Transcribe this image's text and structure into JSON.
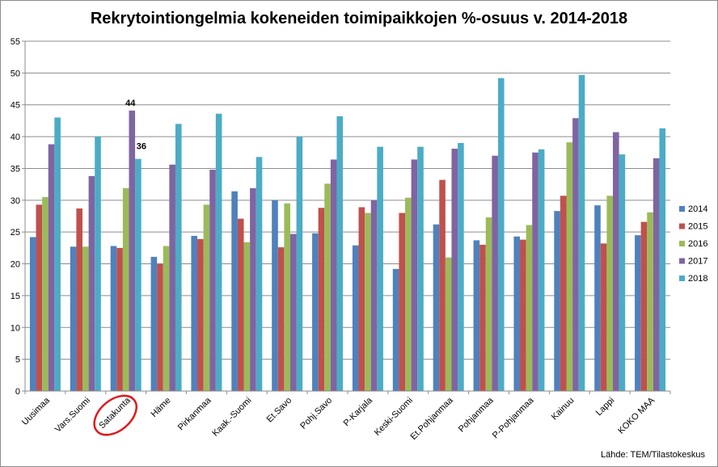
{
  "chart_data": {
    "type": "bar",
    "title": "Rekrytointiongelmia kokeneiden toimipaikkojen %-osuus v. 2014-2018",
    "xlabel": "",
    "ylabel": "",
    "ylim": [
      0,
      55
    ],
    "yticks": [
      0,
      5,
      10,
      15,
      20,
      25,
      30,
      35,
      40,
      45,
      50,
      55
    ],
    "grid": true,
    "legend_position": "right",
    "categories": [
      "Uusimaa",
      "Vars.Suomi",
      "Satakunta",
      "Häme",
      "Pirkanmaa",
      "Kaak.-Suomi",
      "Et.Savo",
      "Pohj.Savo",
      "P-Karjala",
      "Keski-Suomi",
      "Et.Pohjanmaa",
      "Pohjanmaa",
      "P-Pohjanmaa",
      "Kainuu",
      "Lappi",
      "KOKO MAA"
    ],
    "series": [
      {
        "name": "2014",
        "color": "#4f81bd",
        "values": [
          24.2,
          22.7,
          22.8,
          21.1,
          24.4,
          31.4,
          30.0,
          24.8,
          22.9,
          19.2,
          26.2,
          23.7,
          24.3,
          28.3,
          29.2,
          24.5
        ]
      },
      {
        "name": "2015",
        "color": "#c0504d",
        "values": [
          29.3,
          28.7,
          22.5,
          20.0,
          23.9,
          27.1,
          22.6,
          28.8,
          28.9,
          28.0,
          33.2,
          23.0,
          23.8,
          30.7,
          23.2,
          26.6
        ]
      },
      {
        "name": "2016",
        "color": "#9bbb59",
        "values": [
          30.5,
          22.7,
          31.9,
          22.8,
          29.3,
          23.4,
          29.5,
          32.6,
          28.0,
          30.4,
          21.0,
          27.3,
          26.1,
          39.1,
          30.7,
          28.1
        ]
      },
      {
        "name": "2017",
        "color": "#8064a2",
        "values": [
          38.8,
          33.8,
          44.1,
          35.6,
          34.8,
          31.9,
          24.7,
          36.4,
          30.0,
          36.4,
          38.1,
          37.0,
          37.5,
          42.9,
          40.7,
          36.6
        ]
      },
      {
        "name": "2018",
        "color": "#4bacc6",
        "values": [
          43.0,
          40.0,
          36.5,
          42.0,
          43.6,
          36.8,
          40.0,
          43.2,
          38.4,
          38.4,
          39.0,
          49.2,
          38.0,
          49.7,
          37.2,
          41.3
        ]
      }
    ],
    "annotations": [
      {
        "text": "44",
        "category": "Satakunta",
        "series": "2017"
      },
      {
        "text": "36",
        "category": "Satakunta",
        "series": "2018"
      }
    ],
    "highlight": {
      "category": "Satakunta",
      "shape": "ellipse",
      "color": "#e0181c"
    },
    "source": "Lähde: TEM/Tilastokeskus"
  }
}
